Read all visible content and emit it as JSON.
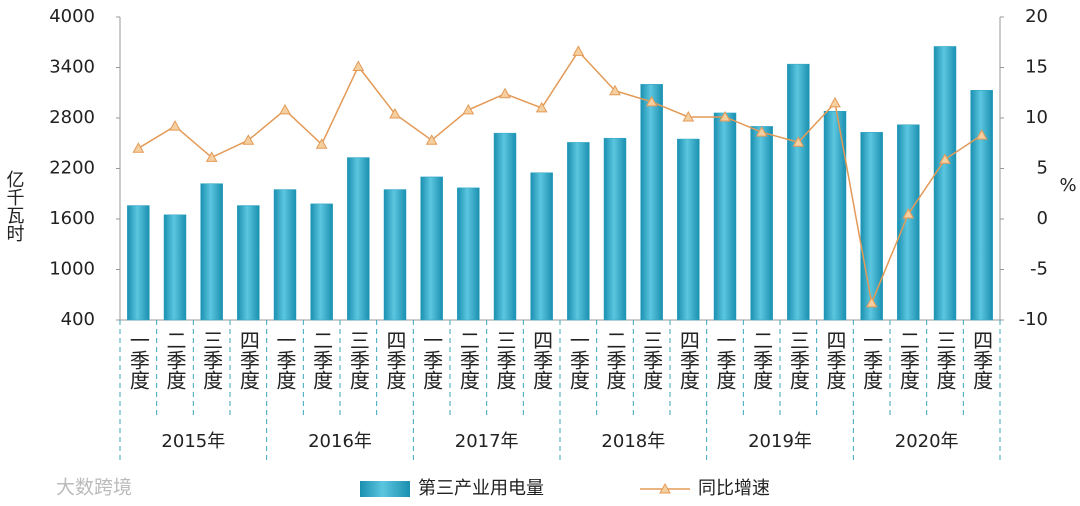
{
  "chart_data": {
    "type": "bar",
    "categories": [
      "一季度",
      "二季度",
      "三季度",
      "四季度",
      "一季度",
      "二季度",
      "三季度",
      "四季度",
      "一季度",
      "二季度",
      "三季度",
      "四季度",
      "一季度",
      "二季度",
      "三季度",
      "四季度",
      "一季度",
      "二季度",
      "三季度",
      "四季度",
      "一季度",
      "二季度",
      "三季度",
      "四季度"
    ],
    "years": [
      "2015年",
      "2016年",
      "2017年",
      "2018年",
      "2019年",
      "2020年"
    ],
    "y_label": "亿千瓦时",
    "y2_label": "%",
    "series": [
      {
        "name": "第三产业用电量",
        "type": "bar",
        "color": "#2aa3c2",
        "values": [
          1760,
          1650,
          2020,
          1760,
          1950,
          1780,
          2330,
          1950,
          2100,
          1970,
          2620,
          2150,
          2510,
          2560,
          3200,
          2550,
          2860,
          2700,
          3440,
          2880,
          2630,
          2720,
          3650,
          3130
        ]
      },
      {
        "name": "同比增速",
        "type": "line",
        "axis": "y2",
        "color": "#e39a57",
        "values": [
          7.0,
          9.2,
          6.1,
          7.8,
          10.8,
          7.4,
          15.1,
          10.4,
          7.8,
          10.8,
          12.4,
          11.0,
          16.6,
          12.7,
          11.6,
          10.1,
          10.1,
          8.6,
          7.6,
          11.5,
          -8.3,
          0.5,
          5.9,
          8.3
        ]
      }
    ],
    "ylim": [
      400,
      4000
    ],
    "yticks": [
      400,
      1000,
      1600,
      2200,
      2800,
      3400,
      4000
    ],
    "y2lim": [
      -10,
      20
    ],
    "y2ticks": [
      -10,
      -5,
      0,
      5,
      10,
      15,
      20
    ],
    "watermark": "大数跨境"
  }
}
